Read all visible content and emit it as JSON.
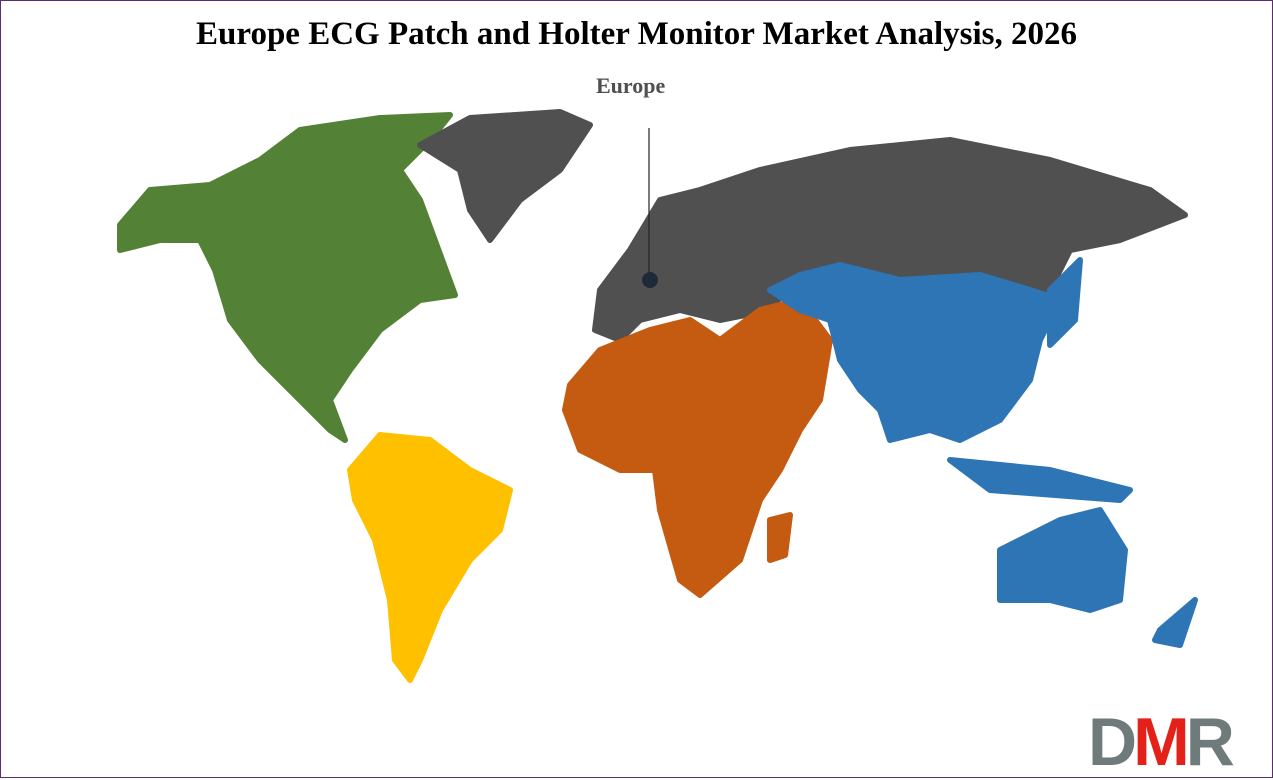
{
  "title": "Europe ECG Patch and Holter Monitor Market Analysis, 2026",
  "highlight": {
    "region": "Europe",
    "label": "Europe",
    "marker_color": "#1f2a38"
  },
  "regions": [
    {
      "name": "North America",
      "color": "#538135"
    },
    {
      "name": "Latin America",
      "color": "#FFC000"
    },
    {
      "name": "Europe",
      "color": "#505050"
    },
    {
      "name": "Middle East & Africa",
      "color": "#C55A11"
    },
    {
      "name": "Asia Pacific",
      "color": "#2E75B6"
    }
  ],
  "logo": {
    "text": "DMR",
    "d": "D",
    "m": "M",
    "r": "R"
  },
  "border_color": "#5b2c6f"
}
